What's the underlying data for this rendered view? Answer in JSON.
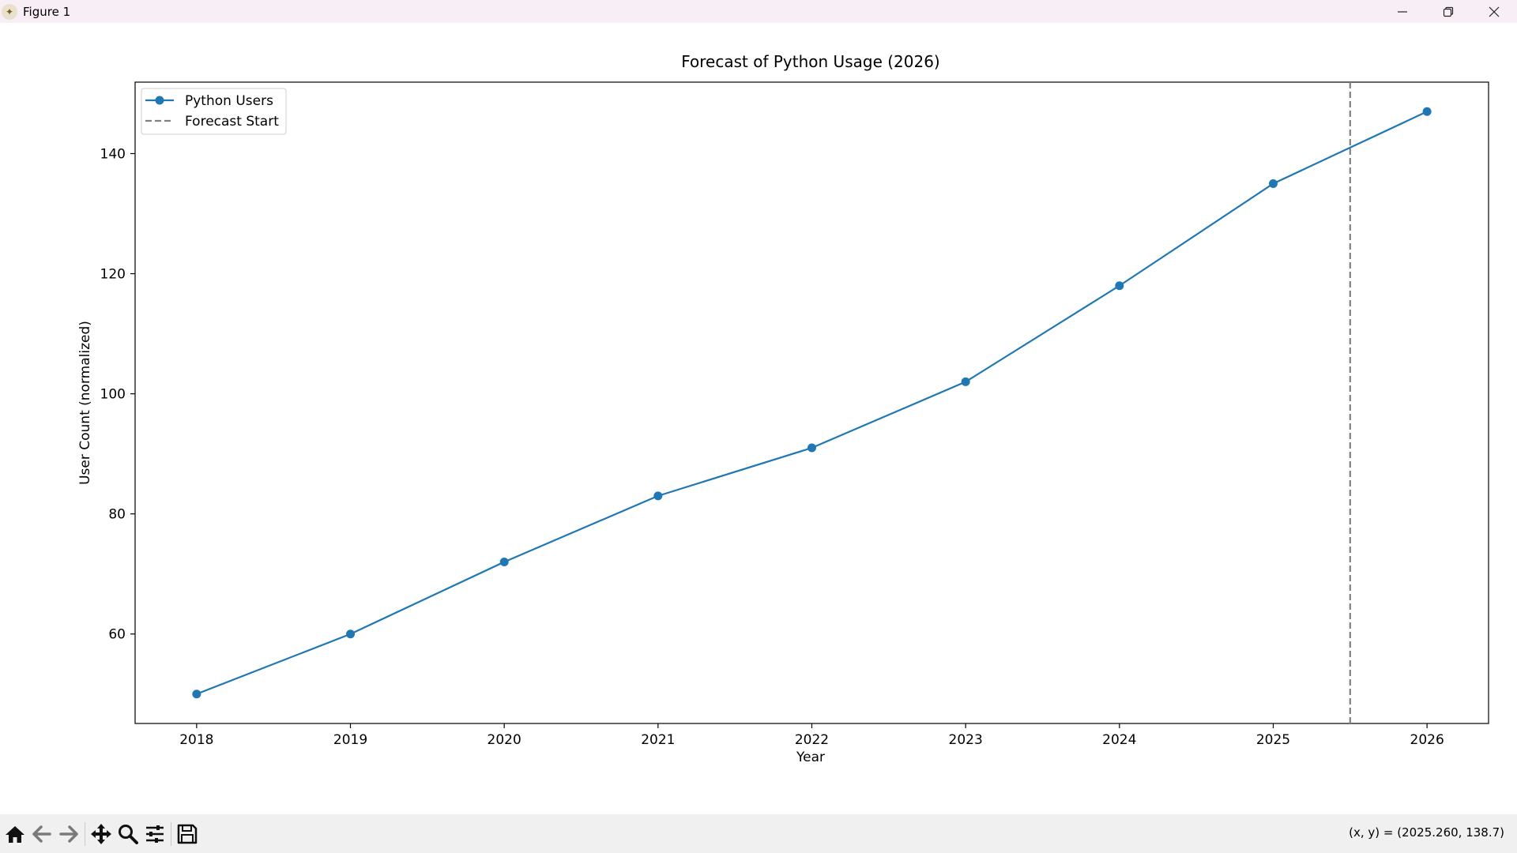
{
  "window": {
    "title": "Figure 1",
    "controls": [
      "minimize-icon",
      "restore-icon",
      "close-icon"
    ]
  },
  "toolbar": {
    "buttons": [
      "home-icon",
      "back-icon",
      "forward-icon",
      "pan-icon",
      "zoom-icon",
      "configure-subplots-icon",
      "save-icon"
    ],
    "coords": "(x, y) = (2025.260, 138.7)"
  },
  "colors": {
    "series": "#1f77b4",
    "forecast_line": "#808080"
  },
  "chart_data": {
    "type": "line",
    "title": "Forecast of Python Usage (2026)",
    "xlabel": "Year",
    "ylabel": "User Count (normalized)",
    "x": [
      2018,
      2019,
      2020,
      2021,
      2022,
      2023,
      2024,
      2025,
      2026
    ],
    "series": [
      {
        "name": "Python Users",
        "values": [
          50,
          60,
          72,
          83,
          91,
          102,
          118,
          135,
          147
        ]
      }
    ],
    "vline": {
      "name": "Forecast Start",
      "x": 2025.5,
      "style": "dashed"
    },
    "xlim": [
      2017.6,
      2026.4
    ],
    "ylim": [
      45.1,
      151.9
    ],
    "xticks": [
      2018,
      2019,
      2020,
      2021,
      2022,
      2023,
      2024,
      2025,
      2026
    ],
    "yticks": [
      60,
      80,
      100,
      120,
      140
    ],
    "legend": {
      "placement": "top-left",
      "entries": [
        "Python Users",
        "Forecast Start"
      ]
    },
    "grid": false
  }
}
